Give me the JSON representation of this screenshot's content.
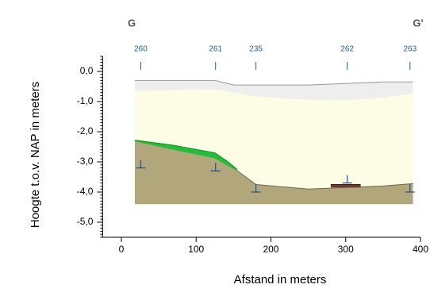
{
  "chart_data": {
    "type": "cross-section",
    "section_labels": [
      "G",
      "G'"
    ],
    "xlabel": "Afstand in meters",
    "ylabel": "Hoogte t.o.v. NAP in meters",
    "xlim": [
      -25,
      400
    ],
    "ylim": [
      -5.5,
      0.5
    ],
    "xticks": [
      0,
      100,
      200,
      300,
      400
    ],
    "yticks": [
      {
        "value": 0,
        "label": "0,0"
      },
      {
        "value": -1,
        "label": "-1,0"
      },
      {
        "value": -2,
        "label": "-2,0"
      },
      {
        "value": -3,
        "label": "-3,0"
      },
      {
        "value": -4,
        "label": "-4,0"
      },
      {
        "value": -5,
        "label": "-5,0"
      }
    ],
    "boreholes": {
      "names": [
        "260",
        "261",
        "235",
        "262",
        "263"
      ],
      "x": [
        26,
        126,
        180,
        302,
        386
      ],
      "depths": [
        -3.2,
        -3.3,
        -4.0,
        -3.7,
        -4.0
      ]
    },
    "layers": [
      {
        "color": "#eeeeee",
        "line": "#999999",
        "x": [
          18,
          70,
          125,
          150,
          180,
          250,
          300,
          350,
          390
        ],
        "top": [
          -0.3,
          -0.3,
          -0.3,
          -0.45,
          -0.45,
          -0.45,
          -0.4,
          -0.35,
          -0.35
        ],
        "bottom": [
          -0.65,
          -0.63,
          -0.62,
          -0.7,
          -0.85,
          -0.95,
          -0.97,
          -0.88,
          -0.75
        ]
      },
      {
        "color": "#fdfde6",
        "line": "#fdfde6",
        "x": [
          18,
          70,
          125,
          150,
          180,
          250,
          300,
          350,
          390
        ],
        "top": [
          -0.65,
          -0.63,
          -0.62,
          -0.7,
          -0.85,
          -0.95,
          -0.97,
          -0.88,
          -0.75
        ],
        "bottom": [
          -4.4,
          -4.4,
          -4.4,
          -4.4,
          -4.4,
          -4.4,
          -4.4,
          -4.4,
          -4.4
        ]
      },
      {
        "color": "#b2a67b",
        "line": "#6f6a55",
        "x": [
          18,
          70,
          125,
          150,
          180,
          250,
          300,
          350,
          390
        ],
        "top": [
          -2.3,
          -2.5,
          -2.8,
          -3.2,
          -3.75,
          -3.9,
          -3.85,
          -3.8,
          -3.72
        ],
        "bottom": [
          -4.4,
          -4.4,
          -4.4,
          -4.4,
          -4.4,
          -4.4,
          -4.4,
          -4.4,
          -4.4
        ]
      },
      {
        "color": "#1fbf3a",
        "line": "#138a27",
        "x": [
          18,
          70,
          125,
          140,
          155
        ],
        "top": [
          -2.28,
          -2.45,
          -2.7,
          -2.95,
          -3.25
        ],
        "bottom": [
          -2.32,
          -2.6,
          -2.88,
          -3.1,
          -3.3
        ]
      },
      {
        "color": "#6a3b2c",
        "line": "#3a2018",
        "x": [
          280,
          320
        ],
        "top": [
          -3.75,
          -3.75
        ],
        "bottom": [
          -3.85,
          -3.85
        ]
      }
    ]
  }
}
